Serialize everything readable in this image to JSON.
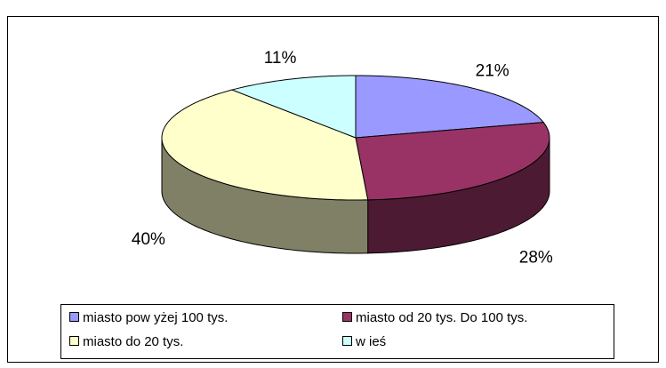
{
  "chart_data": {
    "type": "pie",
    "categories": [
      "miasto pow yżej 100 tys.",
      "miasto od 20 tys. Do 100 tys.",
      "miasto do 20 tys.",
      "w ieś"
    ],
    "values": [
      21,
      28,
      40,
      11
    ],
    "value_labels": [
      "21%",
      "28%",
      "40%",
      "11%"
    ],
    "colors": [
      "#9999ff",
      "#993366",
      "#ffffcc",
      "#ccffff"
    ],
    "legend": "bottom"
  }
}
